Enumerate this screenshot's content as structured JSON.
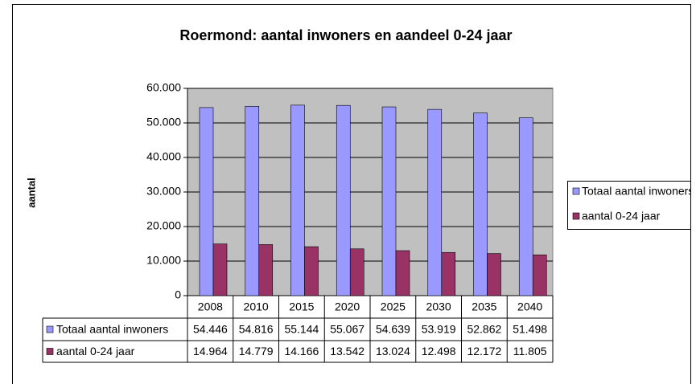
{
  "chart_data": {
    "type": "bar",
    "title": "Roermond: aantal inwoners en aandeel 0-24 jaar",
    "y_label": "aantal",
    "categories": [
      "2008",
      "2010",
      "2015",
      "2020",
      "2025",
      "2030",
      "2035",
      "2040"
    ],
    "series": [
      {
        "name": "Totaal aantal inwoners",
        "color": "#9999ff",
        "values": [
          54446,
          54816,
          55144,
          55067,
          54639,
          53919,
          52862,
          51498
        ],
        "value_labels": [
          "54.446",
          "54.816",
          "55.144",
          "55.067",
          "54.639",
          "53.919",
          "52.862",
          "51.498"
        ]
      },
      {
        "name": "aantal 0-24 jaar",
        "color": "#993366",
        "values": [
          14964,
          14779,
          14166,
          13542,
          13024,
          12498,
          12172,
          11805
        ],
        "value_labels": [
          "14.964",
          "14.779",
          "14.166",
          "13.542",
          "13.024",
          "12.498",
          "12.172",
          "11.805"
        ]
      }
    ],
    "ylim": [
      0,
      60000
    ],
    "yticks": [
      0,
      {
        "value": 10000,
        "label": "10.000"
      },
      {
        "value": 20000,
        "label": "20.000"
      },
      {
        "value": 30000,
        "label": "30.000"
      },
      {
        "value": 40000,
        "label": "40.000"
      },
      {
        "value": 50000,
        "label": "50.000"
      },
      {
        "value": 60000,
        "label": "60.000"
      }
    ],
    "grid": true,
    "legend": "right",
    "data_table": true
  }
}
